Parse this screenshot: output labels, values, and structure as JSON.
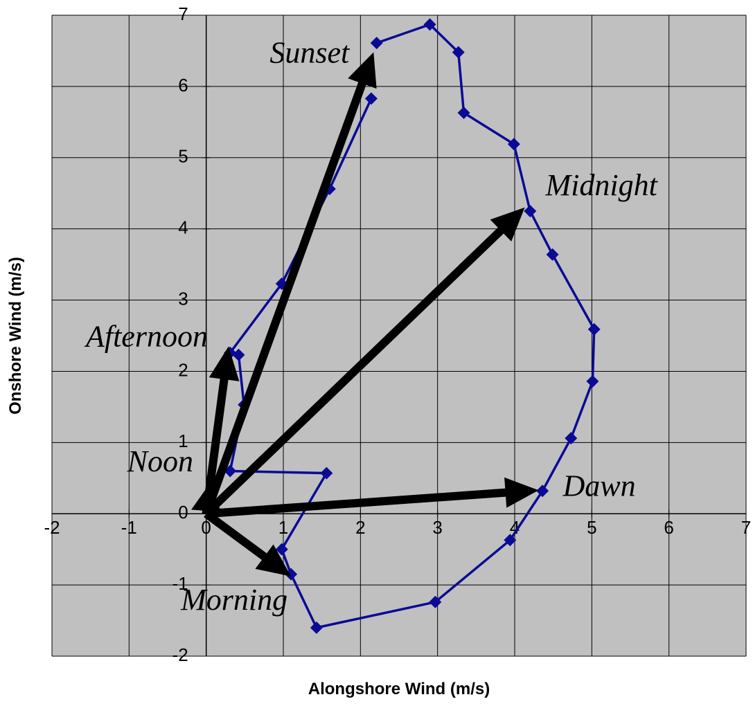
{
  "chart_data": {
    "type": "scatter",
    "x_label": "Alongshore Wind (m/s)",
    "y_label": "Onshore Wind (m/s)",
    "xlim": [
      -2,
      7
    ],
    "ylim": [
      -2,
      7
    ],
    "xticks": [
      -2,
      -1,
      0,
      1,
      2,
      3,
      4,
      5,
      6,
      7
    ],
    "yticks": [
      -2,
      -1,
      0,
      1,
      2,
      3,
      4,
      5,
      6,
      7
    ],
    "grid": true,
    "background": "#c0c0c0",
    "series": [
      {
        "color": "#0a0a96",
        "x": [
          2.21,
          2.9,
          3.27,
          3.34,
          3.99,
          4.2,
          4.49,
          5.03,
          5.01,
          4.73,
          4.36,
          3.94,
          2.97,
          1.43,
          1.1,
          0.98,
          1.56,
          0.31,
          0.49,
          0.42,
          0.31,
          0.98,
          1.6,
          2.14
        ],
        "values": [
          6.61,
          6.87,
          6.48,
          5.63,
          5.19,
          4.25,
          3.64,
          2.59,
          1.86,
          1.06,
          0.32,
          -0.37,
          -1.24,
          -1.6,
          -0.85,
          -0.5,
          0.57,
          0.6,
          1.53,
          2.23,
          2.26,
          3.23,
          4.56,
          5.83
        ]
      }
    ],
    "arrows": [
      {
        "label": "Sunset",
        "x": 2.17,
        "y": 6.48
      },
      {
        "label": "Midnight",
        "x": 4.13,
        "y": 4.3
      },
      {
        "label": "Dawn",
        "x": 4.31,
        "y": 0.33
      },
      {
        "label": "Morning",
        "x": 1.1,
        "y": -0.88
      },
      {
        "label": "Noon",
        "x": 0.03,
        "y": 0.4
      },
      {
        "label": "Afternoon",
        "x": 0.29,
        "y": 2.35
      }
    ],
    "arrow_color": "#000000"
  }
}
